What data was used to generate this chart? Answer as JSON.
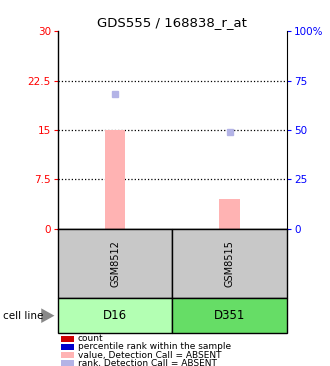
{
  "title": "GDS555 / 168838_r_at",
  "samples": [
    "GSM8512",
    "GSM8515"
  ],
  "cell_lines": [
    "D16",
    "D351"
  ],
  "cell_line_colors": [
    "#b3ffb3",
    "#66dd66"
  ],
  "sample_box_color": "#c8c8c8",
  "bar_absent_color": "#ffb3b3",
  "rank_absent_color": "#b3b3e6",
  "ylim_left": [
    0,
    30
  ],
  "ylim_right": [
    0,
    100
  ],
  "yticks_left": [
    0,
    7.5,
    15,
    22.5,
    30
  ],
  "yticks_right": [
    0,
    25,
    50,
    75,
    100
  ],
  "ytick_labels_left": [
    "0",
    "7.5",
    "15",
    "22.5",
    "30"
  ],
  "ytick_labels_right": [
    "0",
    "25",
    "50",
    "75",
    "100%"
  ],
  "absent_bar_values": [
    15.0,
    4.5
  ],
  "absent_rank_values_pct": [
    68,
    49
  ],
  "dotted_lines": [
    7.5,
    15,
    22.5
  ],
  "x_positions": [
    0,
    1
  ],
  "bar_width": 0.18,
  "legend_items": [
    {
      "label": "count",
      "color": "#cc0000"
    },
    {
      "label": "percentile rank within the sample",
      "color": "#0000cc"
    },
    {
      "label": "value, Detection Call = ABSENT",
      "color": "#ffb3b3"
    },
    {
      "label": "rank, Detection Call = ABSENT",
      "color": "#b3b3e6"
    }
  ]
}
